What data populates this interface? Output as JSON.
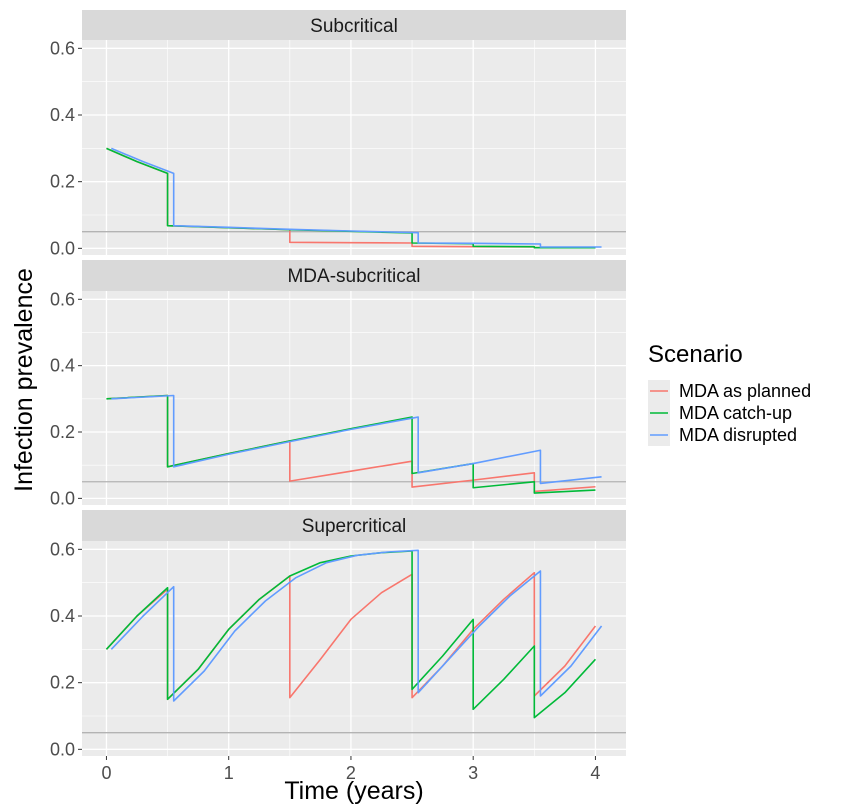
{
  "chart_data": {
    "type": "line",
    "xlabel": "Time (years)",
    "ylabel": "Infection prevalence",
    "xlim": [
      -0.2,
      4.25
    ],
    "ylim": [
      -0.02,
      0.625
    ],
    "x_ticks": [
      0,
      1,
      2,
      3,
      4
    ],
    "x_tick_labels": [
      "0",
      "1",
      "2",
      "3",
      "4"
    ],
    "y_ticks": [
      0.0,
      0.2,
      0.4,
      0.6
    ],
    "y_tick_labels": [
      "0.0",
      "0.2",
      "0.4",
      "0.6"
    ],
    "grid": true,
    "reference_line_y": 0.05,
    "legend": {
      "title": "Scenario",
      "position": "right",
      "entries": [
        "MDA as planned",
        "MDA catch-up",
        "MDA disrupted"
      ]
    },
    "colors": {
      "MDA as planned": "#F8766D",
      "MDA catch-up": "#00BA38",
      "MDA disrupted": "#619CFF",
      "panel_background": "#EBEBEB",
      "strip_background": "#D9D9D9",
      "reference_line": "#B3B3B3"
    },
    "panels": [
      {
        "title": "Subcritical",
        "series": [
          {
            "name": "MDA as planned",
            "x": [
              0,
              0.25,
              0.5,
              0.5,
              1.0,
              1.5,
              1.5,
              2.0,
              2.5,
              2.5,
              3.0,
              3.5,
              3.5,
              4.0
            ],
            "y": [
              0.3,
              0.26,
              0.225,
              0.068,
              0.062,
              0.056,
              0.018,
              0.017,
              0.016,
              0.006,
              0.005,
              0.004,
              0.002,
              0.002
            ]
          },
          {
            "name": "MDA catch-up",
            "x": [
              0,
              0.25,
              0.5,
              0.5,
              1.0,
              1.5,
              2.0,
              2.5,
              2.5,
              3.0,
              3.0,
              3.5,
              3.5,
              4.0
            ],
            "y": [
              0.3,
              0.26,
              0.225,
              0.068,
              0.062,
              0.056,
              0.051,
              0.046,
              0.016,
              0.014,
              0.006,
              0.005,
              0.002,
              0.002
            ]
          },
          {
            "name": "MDA disrupted",
            "x": [
              0.04,
              0.3,
              0.55,
              0.55,
              1.0,
              1.5,
              2.0,
              2.55,
              2.55,
              3.0,
              3.55,
              3.55,
              4.05
            ],
            "y": [
              0.3,
              0.26,
              0.225,
              0.068,
              0.063,
              0.057,
              0.052,
              0.047,
              0.016,
              0.015,
              0.013,
              0.004,
              0.004
            ]
          }
        ]
      },
      {
        "title": "MDA-subcritical",
        "series": [
          {
            "name": "MDA as planned",
            "x": [
              0,
              0.5,
              0.5,
              1.0,
              1.5,
              1.5,
              2.0,
              2.5,
              2.5,
              3.0,
              3.5,
              3.5,
              4.0
            ],
            "y": [
              0.3,
              0.31,
              0.095,
              0.135,
              0.173,
              0.052,
              0.082,
              0.112,
              0.034,
              0.055,
              0.077,
              0.021,
              0.035
            ]
          },
          {
            "name": "MDA catch-up",
            "x": [
              0,
              0.5,
              0.5,
              1.0,
              1.5,
              2.0,
              2.5,
              2.5,
              3.0,
              3.0,
              3.5,
              3.5,
              4.0
            ],
            "y": [
              0.3,
              0.31,
              0.095,
              0.135,
              0.173,
              0.21,
              0.245,
              0.075,
              0.105,
              0.032,
              0.05,
              0.016,
              0.025
            ]
          },
          {
            "name": "MDA disrupted",
            "x": [
              0.04,
              0.55,
              0.55,
              1.0,
              1.5,
              2.0,
              2.55,
              2.55,
              3.0,
              3.55,
              3.55,
              4.05
            ],
            "y": [
              0.3,
              0.31,
              0.095,
              0.133,
              0.171,
              0.208,
              0.245,
              0.077,
              0.105,
              0.145,
              0.045,
              0.065
            ]
          }
        ]
      },
      {
        "title": "Supercritical",
        "series": [
          {
            "name": "MDA as planned",
            "x": [
              0,
              0.25,
              0.5,
              0.5,
              0.75,
              1.0,
              1.25,
              1.5,
              1.5,
              1.75,
              2.0,
              2.25,
              2.5,
              2.5,
              2.75,
              3.0,
              3.25,
              3.5,
              3.5,
              3.75,
              4.0
            ],
            "y": [
              0.3,
              0.4,
              0.48,
              0.15,
              0.24,
              0.36,
              0.45,
              0.52,
              0.155,
              0.27,
              0.39,
              0.47,
              0.525,
              0.155,
              0.25,
              0.36,
              0.45,
              0.53,
              0.16,
              0.25,
              0.37
            ]
          },
          {
            "name": "MDA catch-up",
            "x": [
              0,
              0.25,
              0.5,
              0.5,
              0.75,
              1.0,
              1.25,
              1.5,
              1.75,
              2.0,
              2.25,
              2.5,
              2.5,
              2.75,
              3.0,
              3.0,
              3.25,
              3.5,
              3.5,
              3.75,
              4.0
            ],
            "y": [
              0.3,
              0.4,
              0.485,
              0.15,
              0.24,
              0.36,
              0.45,
              0.52,
              0.56,
              0.58,
              0.59,
              0.595,
              0.18,
              0.28,
              0.39,
              0.12,
              0.21,
              0.31,
              0.095,
              0.17,
              0.27
            ]
          },
          {
            "name": "MDA disrupted",
            "x": [
              0.04,
              0.3,
              0.55,
              0.55,
              0.8,
              1.05,
              1.3,
              1.55,
              1.8,
              2.05,
              2.3,
              2.55,
              2.55,
              2.8,
              3.05,
              3.3,
              3.55,
              3.55,
              3.8,
              4.05
            ],
            "y": [
              0.3,
              0.4,
              0.488,
              0.145,
              0.235,
              0.355,
              0.445,
              0.515,
              0.56,
              0.582,
              0.592,
              0.597,
              0.17,
              0.27,
              0.37,
              0.46,
              0.535,
              0.16,
              0.25,
              0.37
            ]
          }
        ]
      }
    ]
  }
}
